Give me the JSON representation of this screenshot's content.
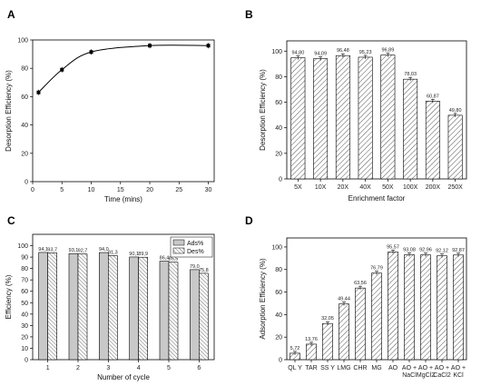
{
  "colors": {
    "bar_fill": "#c8c8c8",
    "axis": "#000000",
    "line": "#000000"
  },
  "chart_data": [
    {
      "panel": "A",
      "type": "line",
      "xlabel": "Time (mins)",
      "ylabel": "Desorption Efficiency (%)",
      "xlim": [
        0,
        31
      ],
      "ylim": [
        0,
        100
      ],
      "xticks": [
        0,
        5,
        10,
        15,
        20,
        25,
        30
      ],
      "yticks": [
        0,
        20,
        40,
        60,
        80,
        100
      ],
      "x": [
        1,
        5,
        10,
        20,
        30
      ],
      "y": [
        63,
        79,
        91.5,
        96,
        96
      ],
      "grid": false
    },
    {
      "panel": "B",
      "type": "bar",
      "xlabel": "Enrichment factor",
      "ylabel": "Desorption Efficiency (%)",
      "ylim": [
        0,
        108
      ],
      "yticks": [
        0,
        20,
        40,
        60,
        80,
        100
      ],
      "categories": [
        "5X",
        "10X",
        "20X",
        "40X",
        "50X",
        "100X",
        "200X",
        "250X"
      ],
      "values": [
        94.8,
        94.09,
        96.48,
        95.23,
        96.89,
        78.03,
        60.87,
        49.8
      ],
      "labels": [
        "94,80",
        "94,09",
        "96,48",
        "95,23",
        "96,89",
        "78,03",
        "60,87",
        "49,80"
      ],
      "grid": false
    },
    {
      "panel": "C",
      "type": "bar",
      "xlabel": "Number of cycle",
      "ylabel": "Efficiency (%)",
      "ylim": [
        0,
        110
      ],
      "yticks": [
        0,
        10,
        20,
        30,
        40,
        50,
        60,
        70,
        80,
        90,
        100
      ],
      "categories": [
        "1",
        "2",
        "3",
        "4",
        "5",
        "6"
      ],
      "series": [
        {
          "name": "Ads%",
          "values": [
            94.1,
            93.1,
            94.0,
            90.1,
            86.4,
            79.0
          ],
          "labels": [
            "94,1",
            "93,1",
            "94,0",
            "90,1",
            "86,4",
            "79,0"
          ]
        },
        {
          "name": "Des%",
          "values": [
            93.7,
            92.7,
            91.3,
            89.9,
            85.5,
            75.8
          ],
          "labels": [
            "93,7",
            "92,7",
            "91,3",
            "89,9",
            "85,5",
            "75,8"
          ]
        }
      ],
      "legend": "top-right",
      "grid": false
    },
    {
      "panel": "D",
      "type": "bar",
      "xlabel": "",
      "ylabel": "Adsorption Efficiency (%)",
      "ylim": [
        0,
        108
      ],
      "yticks": [
        0,
        20,
        40,
        60,
        80,
        100
      ],
      "categories": [
        "QL Y",
        "TAR",
        "SS Y",
        "LMG",
        "CHR",
        "MG",
        "AO",
        "AO +\nNaCl",
        "AO +\nMgCl2",
        "AO +\nCaCl2",
        "AO +\nKCl"
      ],
      "values": [
        5.72,
        13.76,
        32.05,
        49.44,
        63.56,
        76.79,
        95.57,
        93.08,
        92.96,
        92.12,
        92.87
      ],
      "labels": [
        "5,72",
        "13,76",
        "32,05",
        "49,44",
        "63,56",
        "76,79",
        "95,57",
        "93,08",
        "92,96",
        "92,12",
        "92,87"
      ],
      "grid": false
    }
  ]
}
